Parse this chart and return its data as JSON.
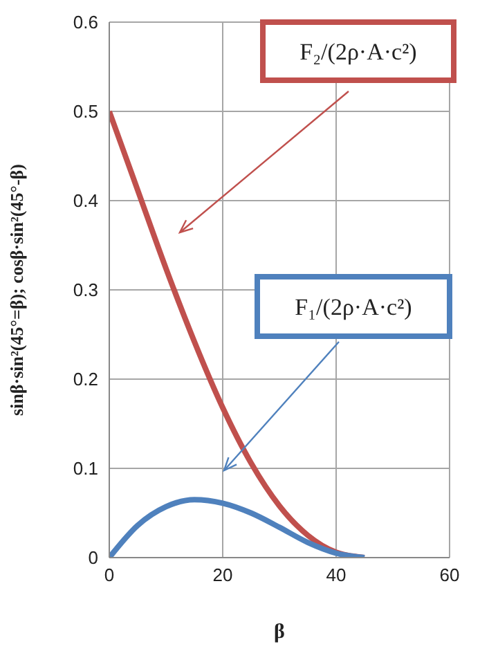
{
  "chart_data": {
    "type": "line",
    "xlabel": "β",
    "ylabel": "sinβ·sin²(45°=β); cosβ·sin²(45°-β)",
    "x": [
      0,
      5,
      10,
      15,
      20,
      25,
      30,
      35,
      40,
      45
    ],
    "series": [
      {
        "color": "#c0504d",
        "values": [
          0.5,
          0.412,
          0.324,
          0.242,
          0.168,
          0.106,
          0.058,
          0.025,
          0.006,
          0
        ]
      },
      {
        "color": "#4f81bd",
        "values": [
          0,
          0.036,
          0.057,
          0.065,
          0.061,
          0.05,
          0.034,
          0.017,
          0.005,
          0
        ]
      }
    ],
    "annotations": [
      "F₂/(2ρ·A·c²)",
      "F₁/(2ρ·A·c²)"
    ],
    "xlim": [
      0,
      60
    ],
    "xticks": [
      0,
      20,
      40,
      60
    ],
    "ylim": [
      0,
      0.6
    ],
    "yticks": [
      0,
      0.1,
      0.2,
      0.3,
      0.4,
      0.5,
      0.6
    ],
    "grid": true,
    "marker": "none",
    "line_style": "solid",
    "legend": false
  }
}
